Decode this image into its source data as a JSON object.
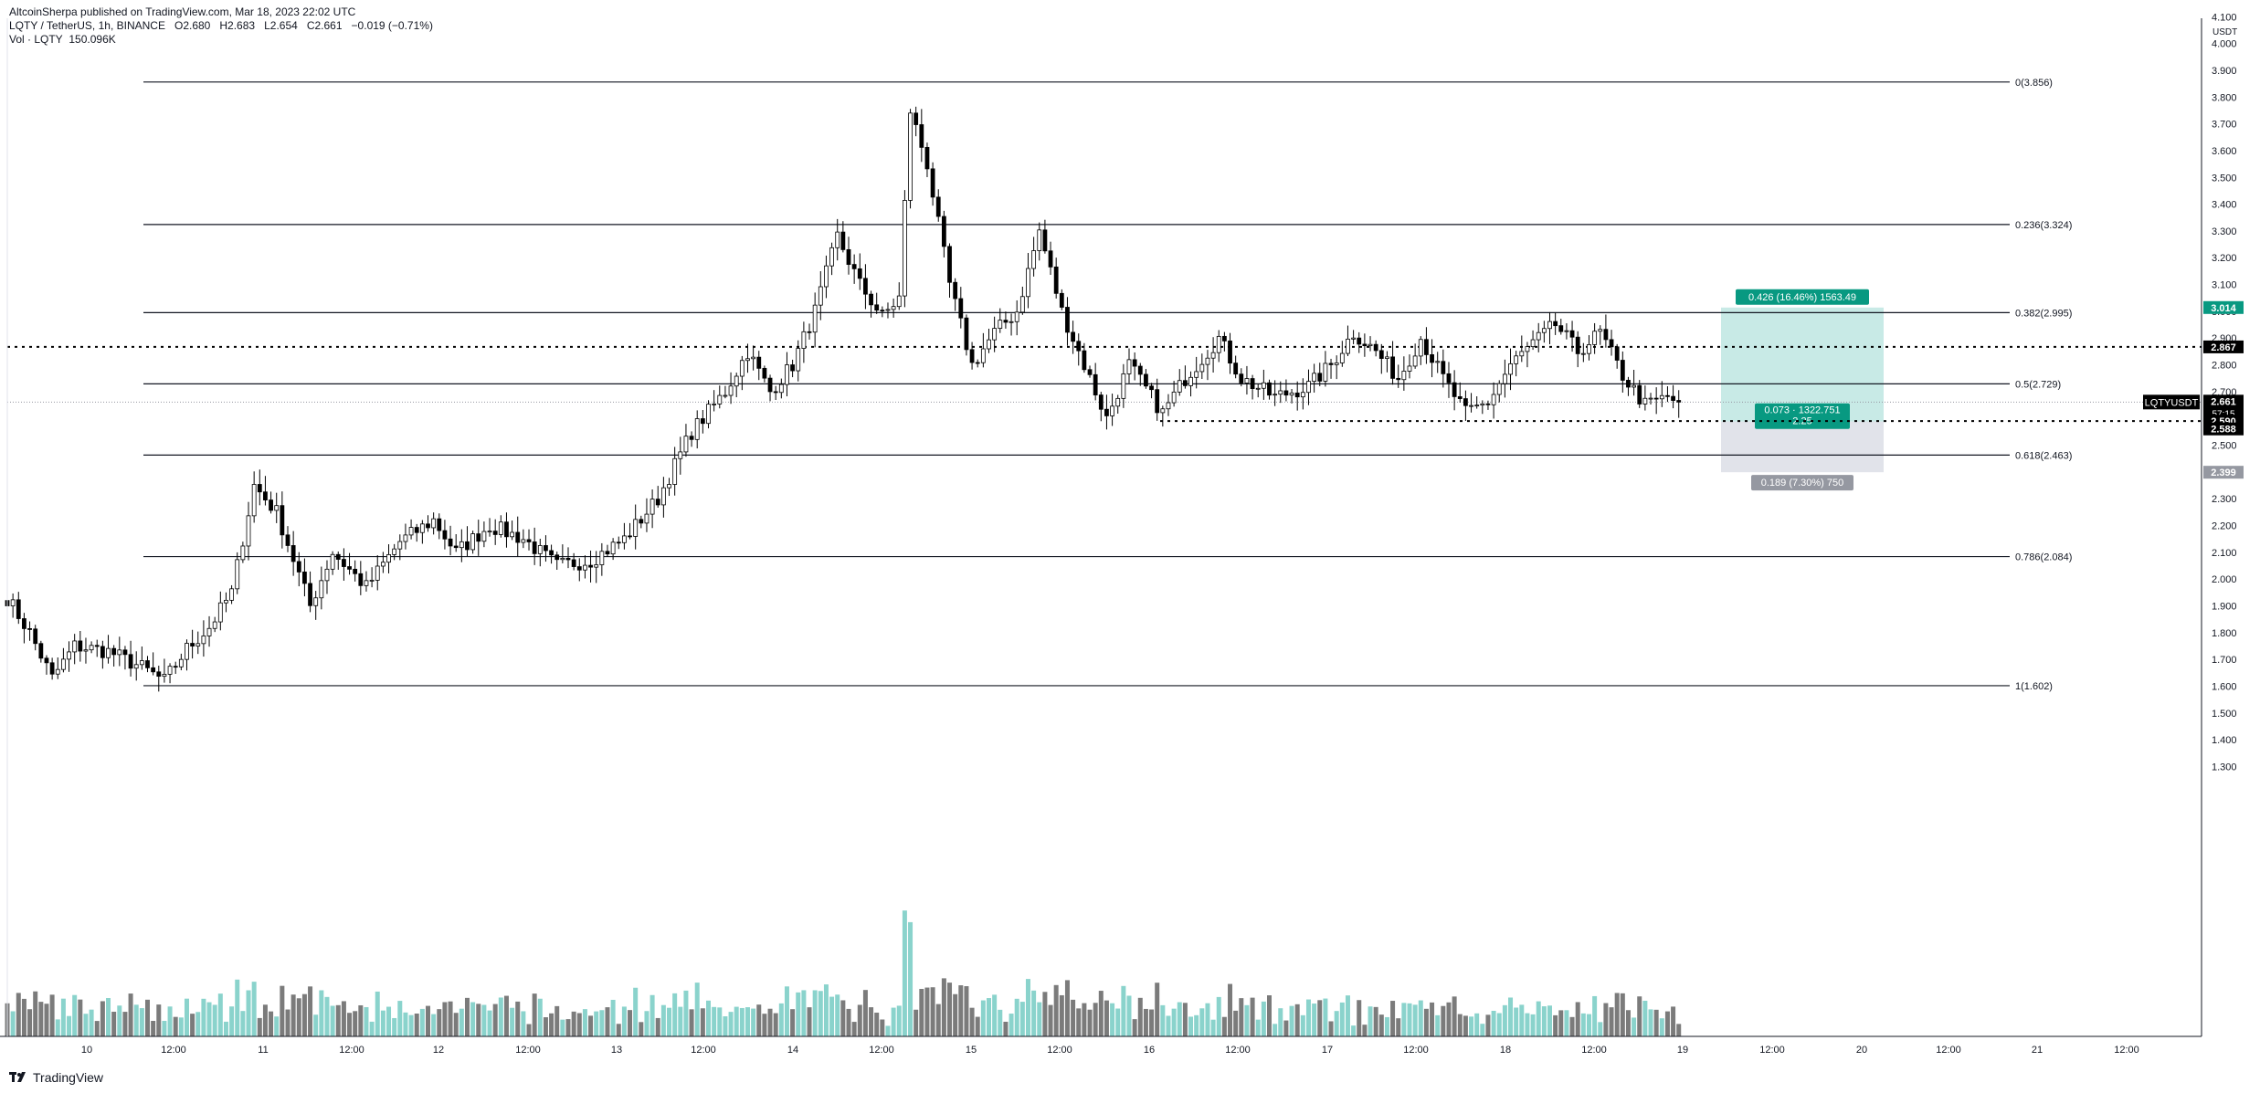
{
  "header": {
    "published": "AltcoinSherpa published on TradingView.com, Mar 18, 2023 22:02 UTC",
    "symbol": "LQTY / TetherUS, 1h, BINANCE",
    "o_label": "O",
    "o": "2.680",
    "h_label": "H",
    "h": "2.683",
    "l_label": "L",
    "l": "2.654",
    "c_label": "C",
    "c": "2.661",
    "change": "−0.019 (−0.71%)",
    "vol_label": "Vol · LQTY",
    "vol": "150.096K"
  },
  "brand": {
    "name": "TradingView"
  },
  "colors": {
    "up": "#26a69a",
    "down": "#000000",
    "vol_up": "#8ad3cc",
    "vol_down": "#7b7b7b",
    "target_zone": "#c8eae6",
    "stop_zone": "#e1e3ea",
    "target_badge": "#089981",
    "stop_badge": "#9598a1"
  },
  "chart_data": {
    "type": "candlestick",
    "ylabel": "USDT",
    "ylim": [
      1.2,
      4.2
    ],
    "yticks": [
      "4.100",
      "4.000",
      "3.900",
      "3.800",
      "3.700",
      "3.600",
      "3.500",
      "3.400",
      "3.300",
      "3.200",
      "3.100",
      "3.000",
      "2.900",
      "2.800",
      "2.700",
      "2.600",
      "2.500",
      "2.400",
      "2.300",
      "2.200",
      "2.100",
      "2.000",
      "1.900",
      "1.800",
      "1.700",
      "1.600",
      "1.500",
      "1.400",
      "1.300"
    ],
    "xticks": [
      "10",
      "12:00",
      "11",
      "12:00",
      "12",
      "12:00",
      "13",
      "12:00",
      "14",
      "12:00",
      "15",
      "12:00",
      "16",
      "12:00",
      "17",
      "12:00",
      "18",
      "12:00",
      "19",
      "12:00",
      "20",
      "12:00",
      "21",
      "12:00"
    ],
    "fib_levels": [
      {
        "ratio": 0,
        "price": 3.856,
        "label": "0(3.856)"
      },
      {
        "ratio": 0.236,
        "price": 3.324,
        "label": "0.236(3.324)"
      },
      {
        "ratio": 0.382,
        "price": 2.995,
        "label": "0.382(2.995)"
      },
      {
        "ratio": 0.5,
        "price": 2.729,
        "label": "0.5(2.729)"
      },
      {
        "ratio": 0.618,
        "price": 2.463,
        "label": "0.618(2.463)"
      },
      {
        "ratio": 0.786,
        "price": 2.084,
        "label": "0.786(2.084)"
      },
      {
        "ratio": 1,
        "price": 1.602,
        "label": "1(1.602)"
      }
    ],
    "horizontal_lines": [
      {
        "price": 2.867,
        "label": "2.867",
        "style": "dotted"
      },
      {
        "price": 2.59,
        "label": "2.590",
        "style": "dotted"
      }
    ],
    "position": {
      "entry": 2.588,
      "target": 3.014,
      "stop": 2.399,
      "target_label": "0.426 (16.46%) 1563.49",
      "center_label_1": "0.073 · 1322.751",
      "center_label_2": "2.25",
      "stop_label": "0.189 (7.30%) 750",
      "target_price_label": "3.014",
      "entry_price_label": "2.588",
      "stop_price_label": "2.399"
    },
    "last_price": {
      "ticker": "LQTYUSDT",
      "price": "2.661",
      "countdown": "57:15"
    },
    "anchors": [
      {
        "i": 0,
        "p": 1.93
      },
      {
        "i": 4,
        "p": 1.8
      },
      {
        "i": 8,
        "p": 1.63
      },
      {
        "i": 12,
        "p": 1.75
      },
      {
        "i": 18,
        "p": 1.73
      },
      {
        "i": 24,
        "p": 1.67
      },
      {
        "i": 28,
        "p": 1.62
      },
      {
        "i": 32,
        "p": 1.74
      },
      {
        "i": 36,
        "p": 1.82
      },
      {
        "i": 40,
        "p": 1.95
      },
      {
        "i": 44,
        "p": 2.35
      },
      {
        "i": 48,
        "p": 2.25
      },
      {
        "i": 54,
        "p": 1.9
      },
      {
        "i": 58,
        "p": 2.1
      },
      {
        "i": 64,
        "p": 1.97
      },
      {
        "i": 70,
        "p": 2.14
      },
      {
        "i": 76,
        "p": 2.22
      },
      {
        "i": 80,
        "p": 2.1
      },
      {
        "i": 86,
        "p": 2.2
      },
      {
        "i": 92,
        "p": 2.15
      },
      {
        "i": 98,
        "p": 2.05
      },
      {
        "i": 104,
        "p": 2.07
      },
      {
        "i": 110,
        "p": 2.15
      },
      {
        "i": 116,
        "p": 2.3
      },
      {
        "i": 122,
        "p": 2.55
      },
      {
        "i": 128,
        "p": 2.7
      },
      {
        "i": 132,
        "p": 2.85
      },
      {
        "i": 136,
        "p": 2.7
      },
      {
        "i": 140,
        "p": 2.8
      },
      {
        "i": 144,
        "p": 3.0
      },
      {
        "i": 148,
        "p": 3.28
      },
      {
        "i": 152,
        "p": 3.1
      },
      {
        "i": 156,
        "p": 2.98
      },
      {
        "i": 159,
        "p": 3.05
      },
      {
        "i": 161,
        "p": 3.75
      },
      {
        "i": 164,
        "p": 3.55
      },
      {
        "i": 168,
        "p": 3.1
      },
      {
        "i": 172,
        "p": 2.8
      },
      {
        "i": 176,
        "p": 2.92
      },
      {
        "i": 180,
        "p": 3.0
      },
      {
        "i": 184,
        "p": 3.3
      },
      {
        "i": 188,
        "p": 3.0
      },
      {
        "i": 192,
        "p": 2.8
      },
      {
        "i": 196,
        "p": 2.6
      },
      {
        "i": 200,
        "p": 2.8
      },
      {
        "i": 206,
        "p": 2.62
      },
      {
        "i": 210,
        "p": 2.75
      },
      {
        "i": 216,
        "p": 2.9
      },
      {
        "i": 220,
        "p": 2.75
      },
      {
        "i": 226,
        "p": 2.68
      },
      {
        "i": 232,
        "p": 2.72
      },
      {
        "i": 236,
        "p": 2.8
      },
      {
        "i": 240,
        "p": 2.92
      },
      {
        "i": 244,
        "p": 2.85
      },
      {
        "i": 248,
        "p": 2.75
      },
      {
        "i": 252,
        "p": 2.9
      },
      {
        "i": 256,
        "p": 2.75
      },
      {
        "i": 260,
        "p": 2.62
      },
      {
        "i": 264,
        "p": 2.66
      },
      {
        "i": 268,
        "p": 2.8
      },
      {
        "i": 272,
        "p": 2.88
      },
      {
        "i": 276,
        "p": 2.95
      },
      {
        "i": 280,
        "p": 2.85
      },
      {
        "i": 284,
        "p": 2.92
      },
      {
        "i": 288,
        "p": 2.76
      },
      {
        "i": 292,
        "p": 2.65
      },
      {
        "i": 296,
        "p": 2.68
      },
      {
        "i": 298,
        "p": 2.661
      }
    ],
    "volume_scale": "relative"
  }
}
